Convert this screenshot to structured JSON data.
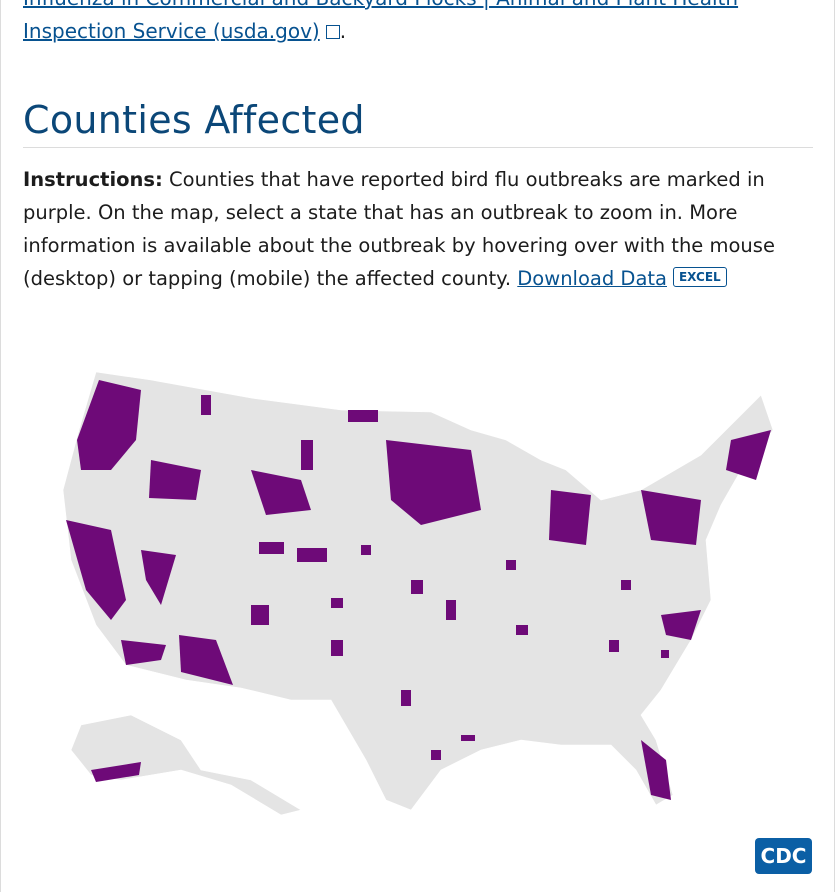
{
  "source_link": {
    "line1": "Influenza in Commercial and Backyard Flocks | Animal and Plant Health",
    "line2": "Inspection Service (usda.gov)",
    "after": "."
  },
  "section": {
    "heading": "Counties Affected",
    "instructions_label": "Instructions:",
    "instructions_text": "Counties that have reported bird flu outbreaks are marked in purple. On the map, select a state that has an outbreak to zoom in. More information is available about the outbreak by hovering over with the mouse (desktop) or tapping (mobile) the affected county.",
    "download_link": "Download Data",
    "download_badge": "EXCEL"
  },
  "logo": "CDC"
}
